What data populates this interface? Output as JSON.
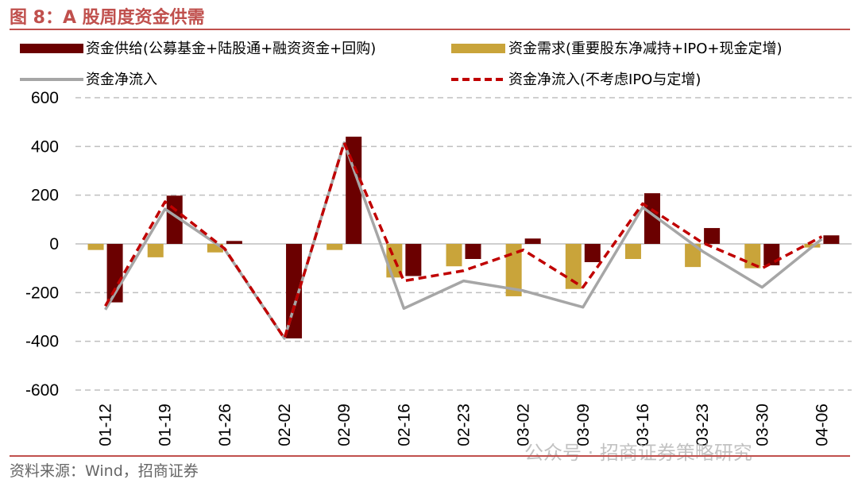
{
  "figure": {
    "title": "图 8：A 股周度资金供需",
    "source": "资料来源：Wind，招商证券",
    "watermark": "公众号 · 招商证券策略研究"
  },
  "colors": {
    "supply": "#6b0000",
    "demand": "#c9a43a",
    "net": "#a6a6a6",
    "net_excl": "#c00000",
    "accent": "#c0504d"
  },
  "chart_data": {
    "type": "bar",
    "categories": [
      "01-12",
      "01-19",
      "01-26",
      "02-02",
      "02-09",
      "02-16",
      "02-23",
      "03-02",
      "03-09",
      "03-16",
      "03-23",
      "03-30",
      "04-06"
    ],
    "ylim": [
      -600,
      600
    ],
    "yticks": [
      600,
      400,
      200,
      0,
      -200,
      -400,
      -600
    ],
    "series": [
      {
        "name": "资金供给(公募基金+陆股通+融资资金+回购)",
        "kind": "bar",
        "values": [
          -240,
          198,
          12,
          -388,
          440,
          -132,
          -62,
          22,
          -75,
          208,
          65,
          -88,
          35
        ]
      },
      {
        "name": "资金需求(重要股东净减持+IPO+现金定增)",
        "kind": "bar",
        "values": [
          -25,
          -55,
          -35,
          0,
          -25,
          -138,
          -92,
          -215,
          -185,
          -62,
          -95,
          -100,
          -15
        ]
      },
      {
        "name": "资金净流入",
        "kind": "line",
        "values": [
          -270,
          143,
          -23,
          -388,
          415,
          -265,
          -152,
          -192,
          -260,
          150,
          -30,
          -178,
          20
        ]
      },
      {
        "name": "资金净流入(不考虑IPO与定增)",
        "kind": "dashed-line",
        "values": [
          -255,
          173,
          -20,
          -388,
          415,
          -152,
          -110,
          -25,
          -178,
          165,
          5,
          -100,
          30
        ]
      }
    ]
  }
}
